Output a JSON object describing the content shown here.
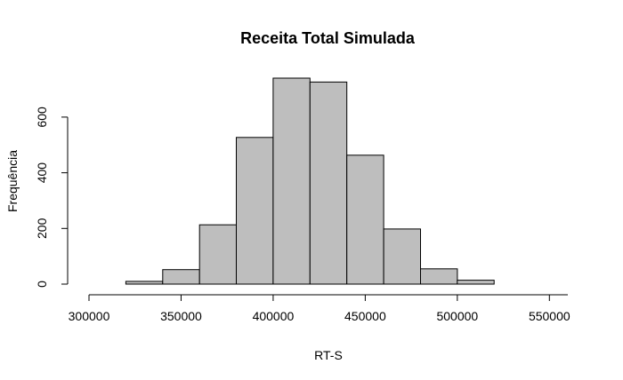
{
  "chart_data": {
    "type": "bar",
    "title": "Receita Total Simulada",
    "xlabel": "RT-S",
    "ylabel": "Frequência",
    "bar_color": "#bebebe",
    "bins": [
      {
        "start": 320000,
        "end": 340000,
        "count": 10
      },
      {
        "start": 340000,
        "end": 360000,
        "count": 52
      },
      {
        "start": 360000,
        "end": 380000,
        "count": 213
      },
      {
        "start": 380000,
        "end": 400000,
        "count": 527
      },
      {
        "start": 400000,
        "end": 420000,
        "count": 740
      },
      {
        "start": 420000,
        "end": 440000,
        "count": 726
      },
      {
        "start": 440000,
        "end": 460000,
        "count": 463
      },
      {
        "start": 460000,
        "end": 480000,
        "count": 198
      },
      {
        "start": 480000,
        "end": 500000,
        "count": 55
      },
      {
        "start": 500000,
        "end": 520000,
        "count": 14
      }
    ],
    "xlim": [
      300000,
      560000
    ],
    "x_ticks": [
      "300000",
      "350000",
      "400000",
      "450000",
      "500000",
      "550000"
    ],
    "y_ticks": [
      "0",
      "200",
      "400",
      "600"
    ],
    "grid": false
  }
}
